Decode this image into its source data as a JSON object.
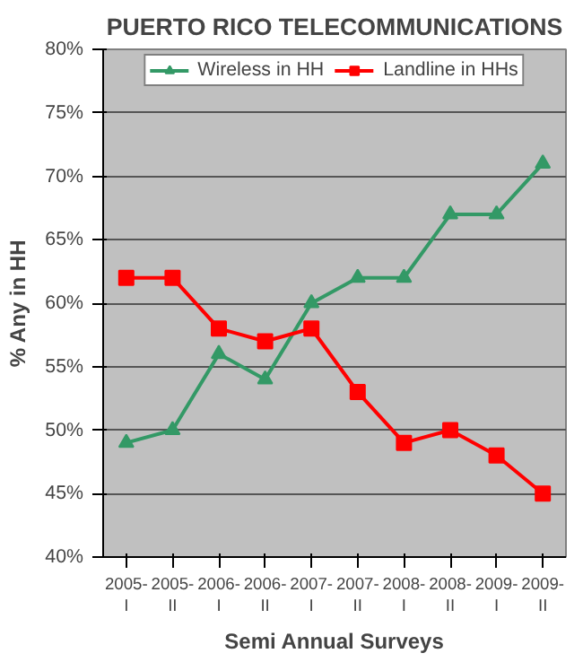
{
  "chart_data": {
    "type": "line",
    "title": "PUERTO RICO TELECOMMUNICATIONS",
    "xlabel": "Semi Annual Surveys",
    "ylabel": "% Any in HH",
    "categories": [
      "2005-\nI",
      "2005-\nII",
      "2006-\nI",
      "2006-\nII",
      "2007-\nI",
      "2007-\nII",
      "2008-\nI",
      "2008-\nII",
      "2009-\nI",
      "2009-\nII"
    ],
    "series": [
      {
        "name": "Wireless in HH",
        "color": "#339966",
        "marker": "triangle",
        "values": [
          49,
          50,
          56,
          54,
          60,
          62,
          62,
          67,
          67,
          71
        ]
      },
      {
        "name": "Landline in HHs",
        "color": "#ff0000",
        "marker": "square",
        "values": [
          62,
          62,
          58,
          57,
          58,
          53,
          49,
          50,
          48,
          45
        ]
      }
    ],
    "ylim": [
      40,
      80
    ],
    "yticks": [
      {
        "value": 40,
        "label": "40%"
      },
      {
        "value": 45,
        "label": "45%"
      },
      {
        "value": 50,
        "label": "50%"
      },
      {
        "value": 55,
        "label": "55%"
      },
      {
        "value": 60,
        "label": "60%"
      },
      {
        "value": 65,
        "label": "65%"
      },
      {
        "value": 70,
        "label": "70%"
      },
      {
        "value": 75,
        "label": "75%"
      },
      {
        "value": 80,
        "label": "80%"
      }
    ],
    "grid": "y",
    "legend": "top",
    "line_style": "solid"
  }
}
